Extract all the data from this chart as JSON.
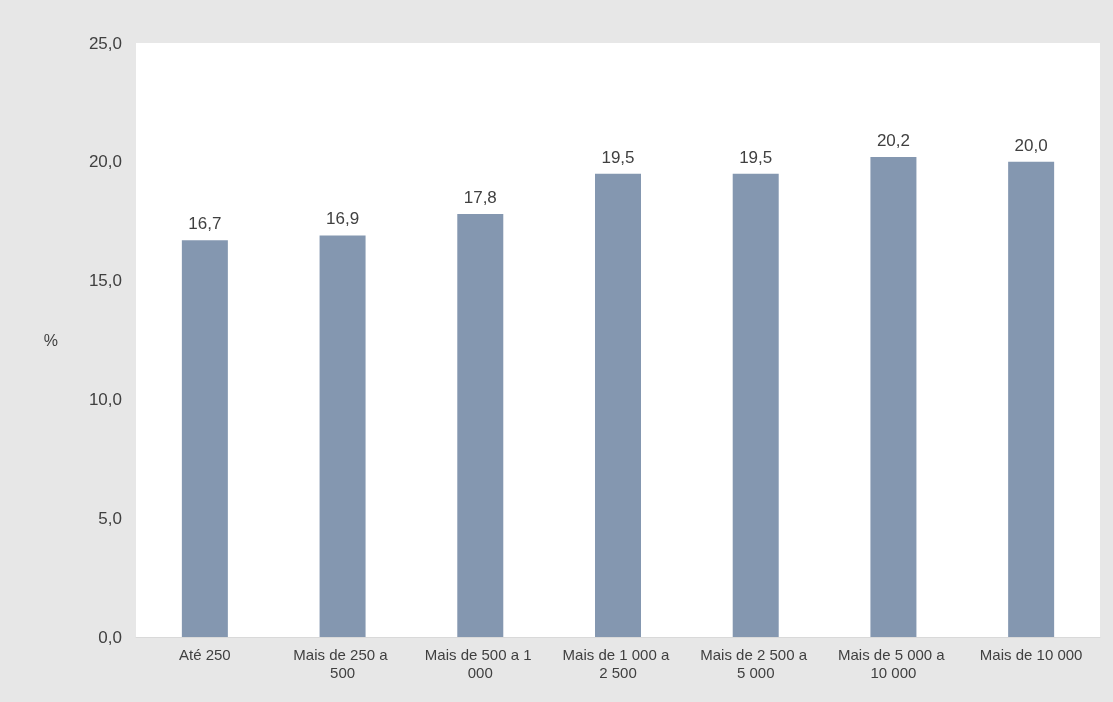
{
  "chart_data": {
    "type": "bar",
    "ylabel": "%",
    "categories": [
      "Até 250",
      "Mais de 250 a 500",
      "Mais de 500 a 1 000",
      "Mais de 1 000 a 2 500",
      "Mais de 2 500 a 5 000",
      "Mais de 5 000 a 10 000",
      "Mais de 10 000"
    ],
    "values": [
      16.7,
      16.9,
      17.8,
      19.5,
      19.5,
      20.2,
      20.0
    ],
    "value_labels": [
      "16,7",
      "16,9",
      "17,8",
      "19,5",
      "19,5",
      "20,2",
      "20,0"
    ],
    "color": "#8497b0",
    "ylim": [
      0,
      25
    ],
    "yticks": [
      {
        "value": 0,
        "label": "0,0"
      },
      {
        "value": 5,
        "label": "5,0"
      },
      {
        "value": 10,
        "label": "10,0"
      },
      {
        "value": 15,
        "label": "15,0"
      },
      {
        "value": 20,
        "label": "20,0"
      },
      {
        "value": 25,
        "label": "25,0"
      }
    ],
    "grid": false
  }
}
